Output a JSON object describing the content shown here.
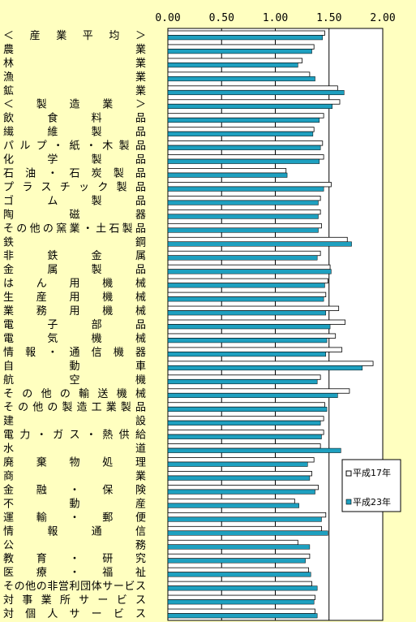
{
  "chart_data": {
    "type": "bar",
    "orientation": "horizontal",
    "x_ticks": [
      "0.00",
      "0.50",
      "1.00",
      "1.50",
      "2.00"
    ],
    "xlim": [
      0,
      2.0
    ],
    "grid": "vertical",
    "legend_position": "right",
    "colors": {
      "series0": "#ffffff",
      "series1": "#1ea0c0",
      "background": "#ffffc0",
      "plot_bg": "#ffffff"
    },
    "categories": [
      "＜ 産 業 平 均 ＞",
      "農 業",
      "林 業",
      "漁 業",
      "鉱 業",
      "＜ 製 造 業 ＞",
      "飲 食 料 品",
      "繊 維 製 品",
      "パルプ・紙・木製品",
      "化 学 製 品",
      "石 油 ・ 石 炭 製 品",
      "プラスチック製品",
      "ゴ ム 製 品",
      "陶 磁 器",
      "その他の窯業・土石製品",
      "鉄 鋼",
      "非 鉄 金 属",
      "金 属 製 品",
      "は ん 用 機 械",
      "生 産 用 機 械",
      "業 務 用 機 械",
      "電 子 部 品",
      "電 気 機 械",
      "情 報 ・ 通 信 機 器",
      "自 動 車",
      "航 空 機",
      "その他の輸送機械",
      "その他の製造工業製品",
      "建 設",
      "電力・ガス・熱供給",
      "水 道",
      "廃 棄 物 処 理",
      "商 業",
      "金 融 ・ 保 険",
      "不 動 産",
      "運 輸 ・ 郵 便",
      "情 報 通 信",
      "公 務",
      "教 育 ・ 研 究",
      "医 療 ・ 福 祉",
      "その他の非営利団体サービス",
      "対 事 業 所 サ ー ビ ス",
      "対 個 人 サ ー ビ ス"
    ],
    "series": [
      {
        "name": "平成17年",
        "values": [
          1.46,
          1.36,
          1.25,
          1.32,
          1.58,
          1.6,
          1.45,
          1.36,
          1.44,
          1.45,
          1.1,
          1.52,
          1.42,
          1.42,
          1.43,
          1.67,
          1.42,
          1.51,
          1.49,
          1.47,
          1.59,
          1.65,
          1.56,
          1.62,
          1.91,
          1.42,
          1.69,
          1.46,
          1.45,
          1.45,
          1.42,
          1.36,
          1.34,
          1.4,
          1.18,
          1.47,
          1.43,
          1.21,
          1.32,
          1.31,
          1.34,
          1.37,
          1.37
        ]
      },
      {
        "name": "平成23年",
        "values": [
          1.44,
          1.34,
          1.21,
          1.37,
          1.64,
          1.53,
          1.41,
          1.35,
          1.42,
          1.41,
          1.11,
          1.45,
          1.4,
          1.4,
          1.4,
          1.71,
          1.39,
          1.52,
          1.46,
          1.45,
          1.47,
          1.51,
          1.48,
          1.47,
          1.81,
          1.39,
          1.58,
          1.48,
          1.42,
          1.43,
          1.61,
          1.3,
          1.32,
          1.37,
          1.22,
          1.43,
          1.49,
          1.32,
          1.28,
          1.33,
          1.39,
          1.36,
          1.39
        ]
      }
    ]
  }
}
